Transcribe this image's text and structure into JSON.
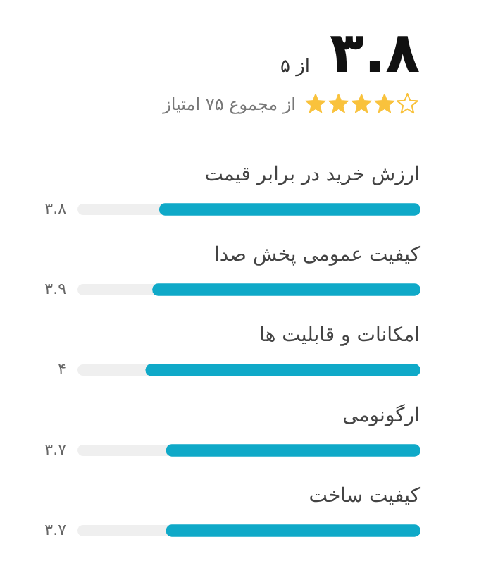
{
  "chart_data": {
    "type": "bar",
    "orientation": "horizontal",
    "title": "۳.۸",
    "subtitle": "از ۵",
    "annotations": [
      "از مجموع ۷۵ امتیاز"
    ],
    "categories": [
      "ارزش خرید در برابر قیمت",
      "کیفیت عمومی پخش صدا",
      "امکانات و قابلیت ها",
      "ارگونومی",
      "کیفیت ساخت"
    ],
    "values": [
      3.8,
      3.9,
      4,
      3.7,
      3.7
    ],
    "value_labels": [
      "۳.۸",
      "۳.۹",
      "۴",
      "۳.۷",
      "۳.۷"
    ],
    "color": "#0fa9c8",
    "xlim": [
      5,
      0
    ],
    "tick_labels": false
  }
}
